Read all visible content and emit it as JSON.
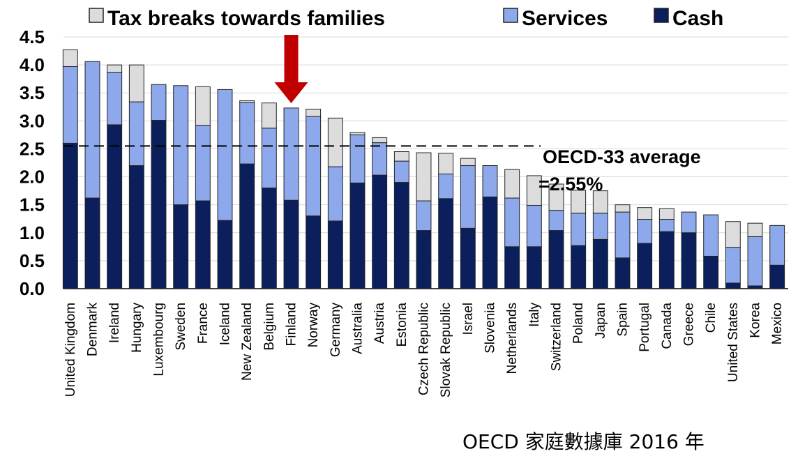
{
  "chart_data": {
    "type": "bar",
    "stacked": true,
    "categories": [
      "United Kingdom",
      "Denmark",
      "Ireland",
      "Hungary",
      "Luxembourg",
      "Sweden",
      "France",
      "Iceland",
      "New Zealand",
      "Belgium",
      "Finland",
      "Norway",
      "Germany",
      "Australia",
      "Austria",
      "Estonia",
      "Czech Republic",
      "Slovak Republic",
      "Israel",
      "Slovenia",
      "Netherlands",
      "Italy",
      "Switzerland",
      "Poland",
      "Japan",
      "Spain",
      "Portugal",
      "Canada",
      "Greece",
      "Chile",
      "United States",
      "Korea",
      "Mexico"
    ],
    "series": [
      {
        "name": "Cash",
        "color": "#0a1f5c",
        "values": [
          2.6,
          1.62,
          2.93,
          2.2,
          3.01,
          1.5,
          1.57,
          1.22,
          2.23,
          1.8,
          1.58,
          1.3,
          1.21,
          1.89,
          2.03,
          1.9,
          1.04,
          1.61,
          1.08,
          1.64,
          0.75,
          0.75,
          1.04,
          0.77,
          0.88,
          0.55,
          0.81,
          1.02,
          1.0,
          0.58,
          0.1,
          0.05,
          0.42
        ]
      },
      {
        "name": "Services",
        "color": "#8ea8ec",
        "values": [
          1.37,
          2.44,
          0.94,
          1.14,
          0.64,
          2.13,
          1.35,
          2.34,
          1.1,
          1.07,
          1.65,
          1.78,
          0.97,
          0.86,
          0.58,
          0.38,
          0.53,
          0.44,
          1.12,
          0.56,
          0.87,
          0.74,
          0.36,
          0.58,
          0.47,
          0.82,
          0.43,
          0.22,
          0.37,
          0.74,
          0.64,
          0.88,
          0.71
        ]
      },
      {
        "name": "Tax breaks towards families",
        "color": "#dcdcdc",
        "values": [
          0.3,
          0.0,
          0.13,
          0.66,
          0.0,
          0.0,
          0.69,
          0.0,
          0.03,
          0.45,
          0.0,
          0.13,
          0.87,
          0.04,
          0.09,
          0.17,
          0.86,
          0.37,
          0.13,
          0.0,
          0.51,
          0.53,
          0.47,
          0.41,
          0.4,
          0.13,
          0.21,
          0.19,
          0.0,
          0.0,
          0.46,
          0.24,
          0.0
        ]
      }
    ],
    "legend": [
      "Tax breaks towards families",
      "Services",
      "Cash"
    ],
    "legend_position": "top",
    "ylim": [
      0,
      4.5
    ],
    "yticks": [
      "0.0",
      "0.5",
      "1.0",
      "1.5",
      "2.0",
      "2.5",
      "3.0",
      "3.5",
      "4.0",
      "4.5"
    ],
    "grid": true,
    "reference_line": {
      "value": 2.55,
      "label_line1": "OECD-33 average",
      "label_line2": "=2.55%"
    },
    "highlight_category": "Finland",
    "highlight_color": "#c00000"
  },
  "footer": {
    "source": "OECD  家庭數據庫 2016 年"
  }
}
